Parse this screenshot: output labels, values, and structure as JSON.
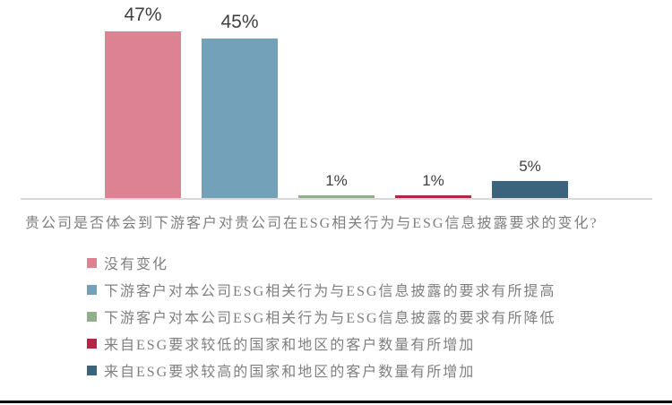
{
  "chart_data": {
    "type": "bar",
    "title": "",
    "categories": [
      "没有变化",
      "下游客户对本公司ESG相关行为与ESG信息披露的要求有所提高",
      "下游客户对本公司ESG相关行为与ESG信息披露的要求有所降低",
      "来自ESG要求较低的国家和地区的客户数量有所增加",
      "来自ESG要求较高的国家和地区的客户数量有所增加"
    ],
    "values": [
      47,
      45,
      1,
      1,
      5
    ],
    "value_labels": [
      "47%",
      "45%",
      "1%",
      "1%",
      "5%"
    ],
    "colors": [
      "#DD8293",
      "#74A1BA",
      "#92AF8B",
      "#B02845",
      "#3C637D"
    ],
    "xlabel": "贵公司是否体会到下游客户对贵公司在ESG相关行为与ESG信息披露要求的变化?",
    "ylabel": "",
    "ylim": [
      0,
      50
    ],
    "grid": false,
    "legend_position": "bottom-left",
    "legend": [
      {
        "label": "没有变化",
        "color": "#DD8293"
      },
      {
        "label": "下游客户对本公司ESG相关行为与ESG信息披露的要求有所提高",
        "color": "#74A1BA"
      },
      {
        "label": "下游客户对本公司ESG相关行为与ESG信息披露的要求有所降低",
        "color": "#92AF8B"
      },
      {
        "label": "来自ESG要求较低的国家和地区的客户数量有所增加",
        "color": "#B02845"
      },
      {
        "label": "来自ESG要求较高的国家和地区的客户数量有所增加",
        "color": "#3C637D"
      }
    ],
    "styles": {
      "value_label_color": "#404040",
      "text_color": "#7F7F7F",
      "axis_line_color": "#D9D9D9",
      "bottom_rule_color": "#000000",
      "background_color": "#FFFFFF"
    }
  }
}
